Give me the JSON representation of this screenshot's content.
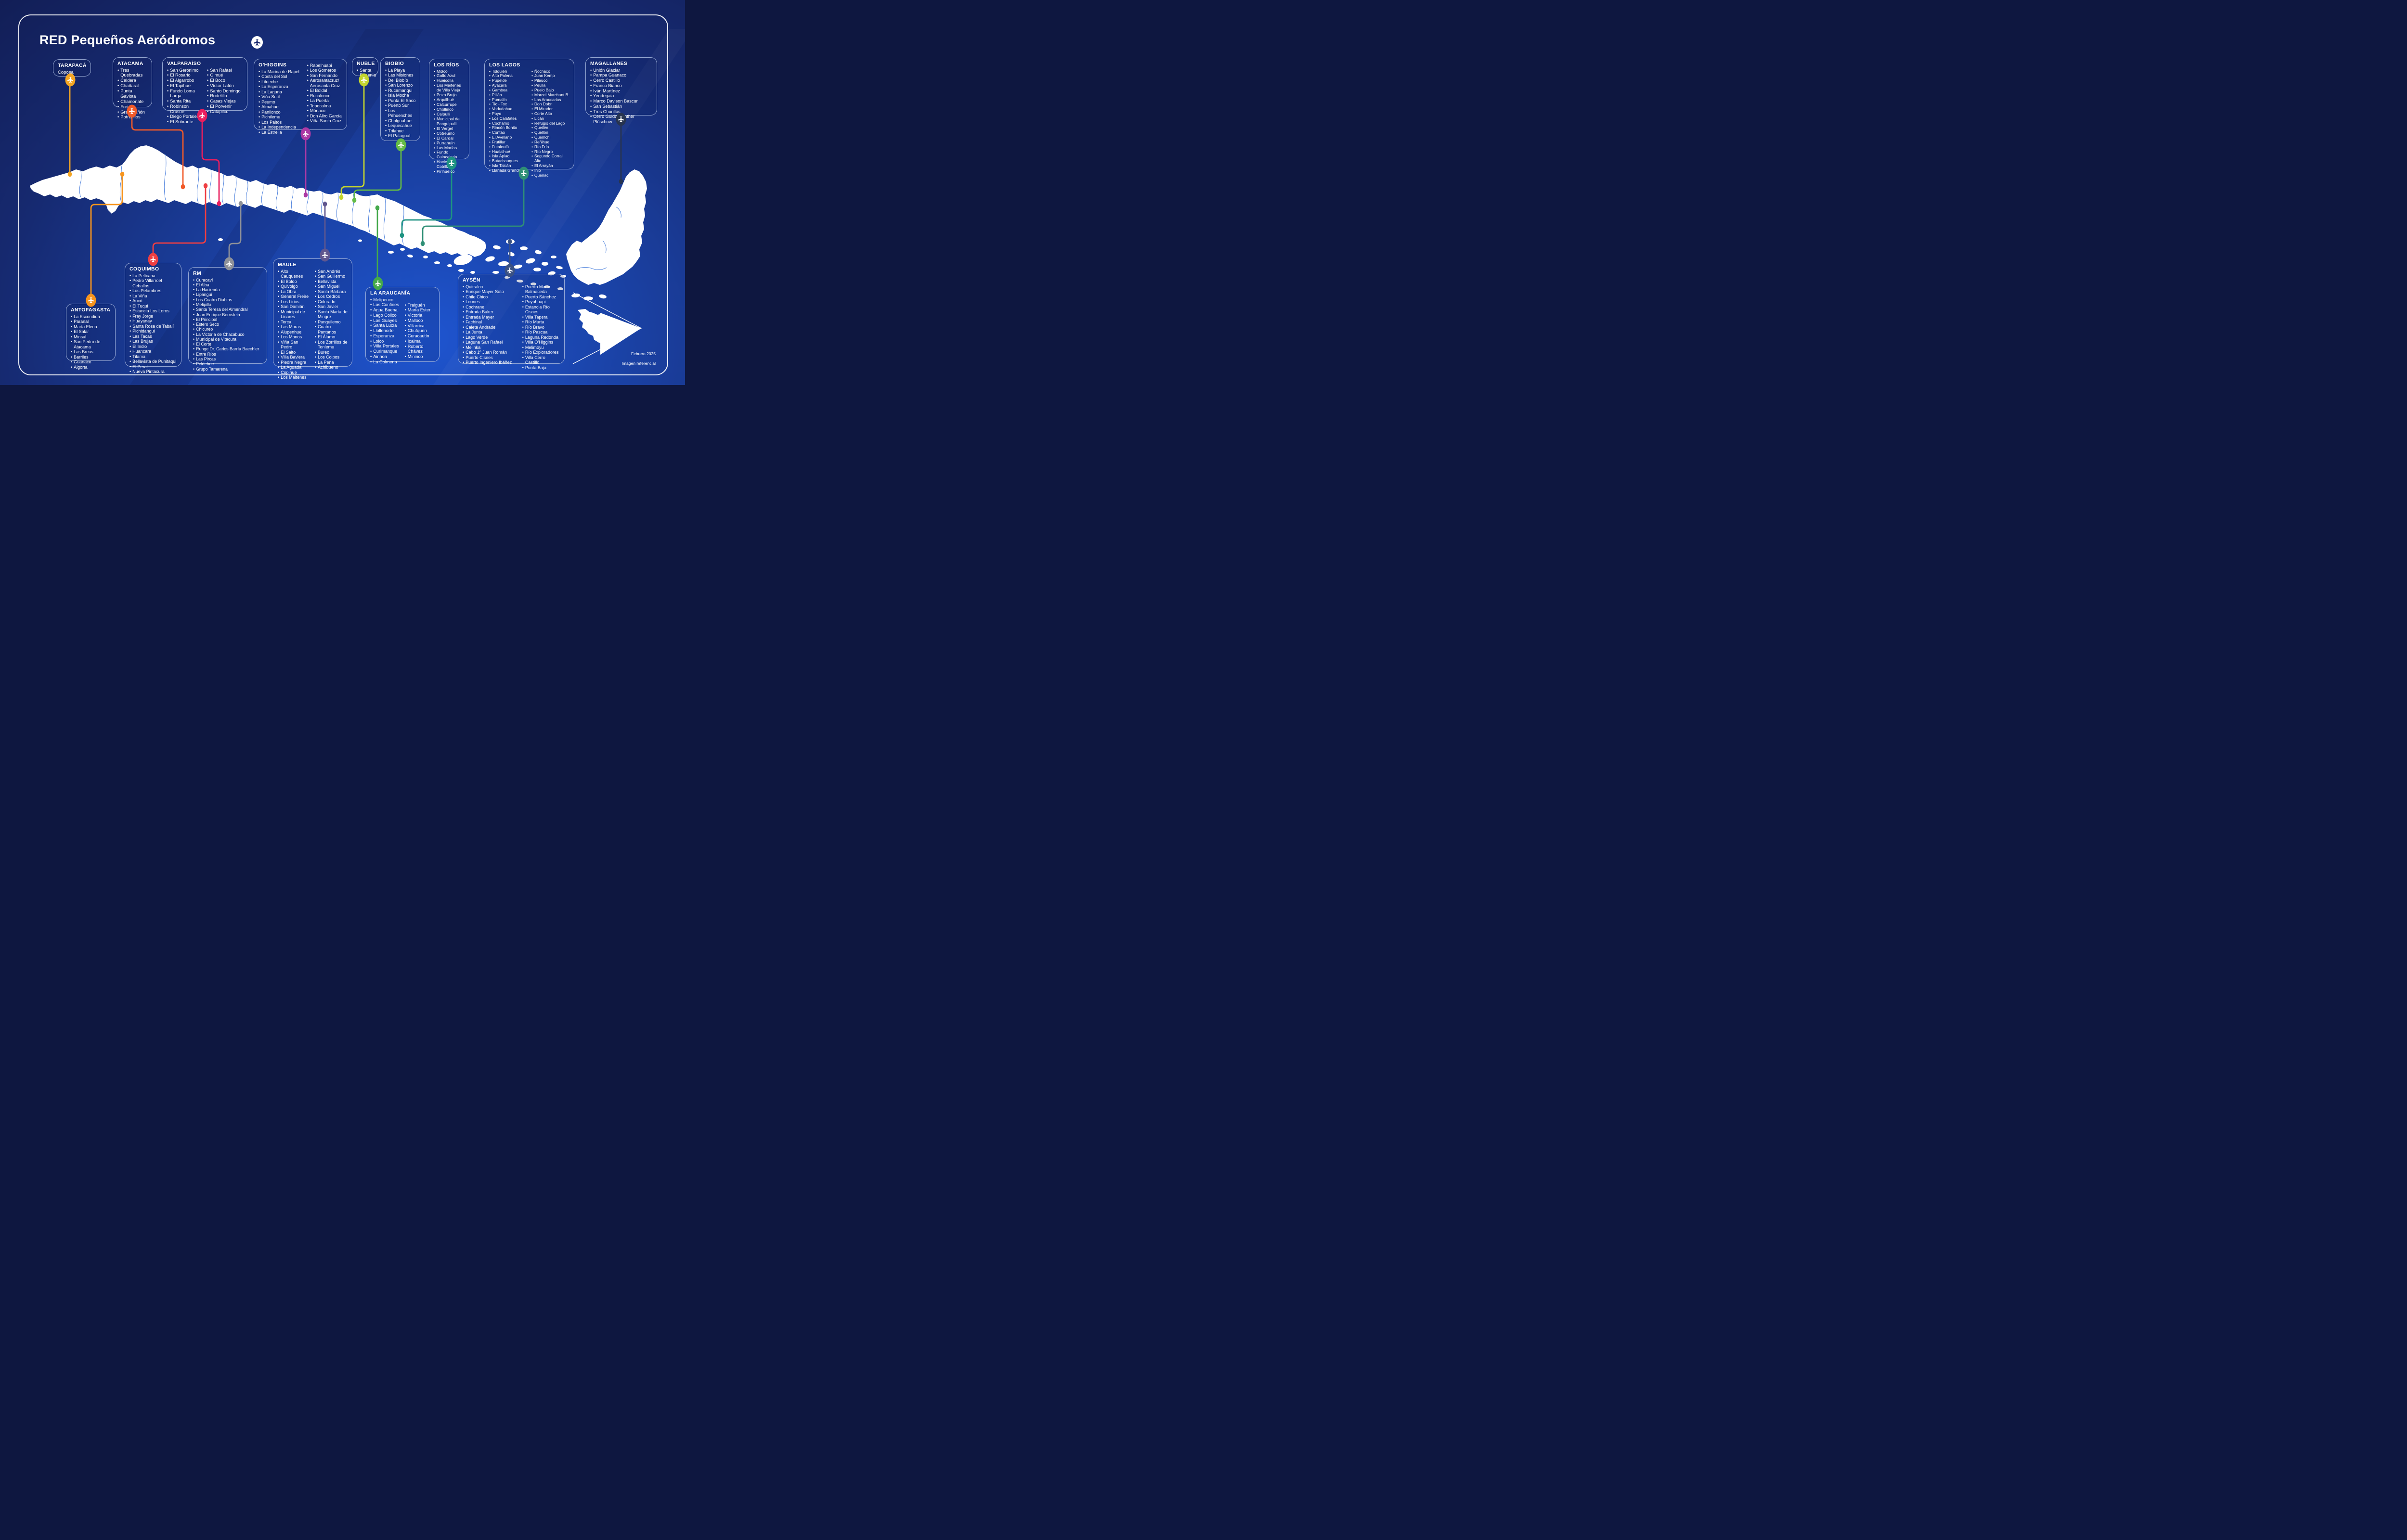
{
  "title": "RED Pequeños Aeródromos",
  "footer": {
    "date": "Febrero 2025",
    "note": "Imagen referencial"
  },
  "palette": {
    "background_top": "#121E56",
    "background_bottom": "#1E55D0",
    "landmass": "#FFFFFF",
    "region_borders": "#2E6BD6",
    "frame": "#FFFFFF",
    "box_border": "#9DB1DA"
  },
  "regions": [
    {
      "id": "tarapaca",
      "name": "TARAPACÁ",
      "color": "#F5A623",
      "columns": [
        [
          "Coposa"
        ]
      ]
    },
    {
      "id": "atacama",
      "name": "ATACAMA",
      "color": "#F15A29",
      "columns": [
        [
          "Tres Quebradas",
          "Caldera",
          "Chañaral",
          "Punta Gaviota",
          "Chamonate",
          "Freirina",
          "Gran Cañón",
          "Potrerillos"
        ]
      ]
    },
    {
      "id": "valparaiso",
      "name": "VALPARAÍSO",
      "color": "#E91E5E",
      "columns": [
        [
          "San Gerónimo",
          "El Rosario",
          "El Algarrobo",
          "El Tapihue",
          "Fundo Loma Larga",
          "Santa Rita",
          "Robinson Crusoe",
          "Diego Portales",
          "El Sobrante"
        ],
        [
          "San Rafael",
          "Olmué",
          "El Boco",
          "Víctor Lafón",
          "Santo Domingo",
          "Rodelillo",
          "Casas Viejas",
          "El Porvenir",
          "Catapilco"
        ]
      ]
    },
    {
      "id": "ohiggins",
      "name": "O’HIGGINS",
      "color": "#AC39A5",
      "columns": [
        [
          "La Marina de Rapel",
          "Costa del Sol",
          "Litueche",
          "La Esperanza",
          "La Laguna",
          "Viña Sutil",
          "Peumo",
          "Almahue",
          "Panilonco",
          "Pichilemu",
          "Los Paltos",
          "La Independencia",
          "La Estrella"
        ],
        [
          "Rapelhuapi",
          "Los Gomeros",
          "San Fernando",
          "Aerosantacruz/ Aerosanta Cruz",
          "El Boldal",
          "Rucalonco",
          "La Puerta",
          "Topocalma",
          "Mónaco",
          "Don Aliro García",
          "Viña Santa Cruz"
        ]
      ]
    },
    {
      "id": "nuble",
      "name": "ÑUBLE",
      "color": "#C3D52E",
      "columns": [
        [
          "Santa Eugenia"
        ]
      ]
    },
    {
      "id": "biobio",
      "name": "BIOBÍO",
      "color": "#63BB46",
      "columns": [
        [
          "La Playa",
          "Las Misiones",
          "Del Biobío",
          "San Lorenzo",
          "Rucamanqui",
          "Isla Mocha",
          "Punta El Saco",
          "Puerto Sur",
          "Los Pehuenches",
          "Cholguahue",
          "Lequecahue",
          "Trilahue",
          "El Patagual"
        ]
      ]
    },
    {
      "id": "losrios",
      "name": "LOS RÍOS",
      "color": "#1E9382",
      "columns": [
        [
          "Molco",
          "Golfo Azul",
          "Hueicolla",
          "Los Maitenes de Villa Vieja",
          "Pozo Brujo",
          "Arquilhué",
          "Calcurrupe",
          "Chollinco",
          "Calpulli",
          "Municipal de Panguipulli",
          "El Vergel",
          "Cotreumo",
          "El Cardal",
          "Purrahuín",
          "Las Marías",
          "Fundo Cuincahuin",
          "Hacienda Cotrilla",
          "Pirihueico"
        ]
      ]
    },
    {
      "id": "loslagos",
      "name": "LOS LAGOS",
      "color": "#2F8F76",
      "columns": [
        [
          "Tolquién",
          "Alto Palena",
          "Pupelde",
          "Ayacara",
          "Gamboa",
          "Pillán",
          "Pumalín",
          "Tic - Toc",
          "Vodudahue",
          "Poyo",
          "Los Calafates",
          "Cochamó",
          "Rincón Bonito",
          "Contao",
          "El Avellano",
          "Frutillar",
          "Futaleufú",
          "Hualaihué",
          "Isla Apiao",
          "Butachauques",
          "Isla Talcán",
          "Llanada Grande"
        ],
        [
          "Ñochaco",
          "Juan Kemp",
          "Pilauco",
          "Peulla",
          "Puelo Bajo",
          "Marcel Marchant B.",
          "Las Araucarias",
          "Don Dobri",
          "El Mirador",
          "Corte Alto",
          "Licán",
          "Refugio del Lago",
          "Queilén",
          "Quellón",
          "Quemchi",
          "Reñihue",
          "Río Frío",
          "Río Negro",
          "Segundo Corral Alto",
          "El Arrayán",
          "Inio",
          "Quenac"
        ]
      ]
    },
    {
      "id": "magallanes",
      "name": "MAGALLANES",
      "color": "#273450",
      "columns": [
        [
          "Unión Glaciar",
          "Pampa Guanaco",
          "Cerro Castillo",
          "Franco Bianco",
          "Iván Martínez",
          "Yendegaia",
          "Marco Davison Bascur",
          "San Sebastián",
          "Tres Chorillos",
          "Cerro Guido/Gunther Plüschow"
        ]
      ]
    },
    {
      "id": "antofagasta",
      "name": "ANTOFAGASTA",
      "color": "#F7941D",
      "columns": [
        [
          "La Escondida",
          "Paranal",
          "María Elena",
          "El Salar",
          "Minsal",
          "San Pedro de Atacama",
          "Las Breas",
          "Barriles",
          "Guanaco",
          "Algorta"
        ]
      ]
    },
    {
      "id": "coquimbo",
      "name": "COQUIMBO",
      "color": "#EF3E42",
      "columns": [
        [
          "La Pelícana",
          "Pedro Villarroel Ceballos",
          "Los Pelambres",
          "La Viña",
          "Aucó",
          "El Tuqui",
          "Estancia Los Loros",
          "Fray Jorge",
          "Huayanay",
          "Santa Rosa de Tabalí",
          "Pichidangui",
          "Las Tacas",
          "Las Brujas",
          "El Indio",
          "Huancara",
          "Tilama",
          "Bellavista de Punitaqui",
          "El Peral",
          "Nueva Pintacura"
        ]
      ]
    },
    {
      "id": "rm",
      "name": "RM",
      "color": "#8E9199",
      "columns": [
        [
          "Curacaví",
          "El Alba",
          "La Hacienda",
          "Lipangui",
          "Los Cuatro Diablos",
          "Melipilla",
          "Santa Teresa del Almendral",
          "Juan Enrique Bernstein",
          "El Principal",
          "Estero Seco",
          "Chicureo",
          "La Victoria de Chacabuco",
          "Municipal de Vitacura",
          "El Corte",
          "Runge Dr. Carlos Barría Baechler",
          "Entre Ríos",
          "Las Pircas",
          "Peldehue",
          "Grupo Tamarena"
        ]
      ]
    },
    {
      "id": "maule",
      "name": "MAULE",
      "color": "#60578F",
      "columns": [
        [
          "Alto Cauquenes",
          "El Boldo",
          "Quivolgo",
          "La Obra",
          "General Freire",
          "Los Lirios",
          "San Damián",
          "Municipal de Linares",
          "Torca",
          "Las Moras",
          "Alupenhue",
          "Los Monos",
          "Viña San Pedro",
          "El Salto",
          "Villa Baviera",
          "Piedra Negra",
          "La Aguada",
          "Copihue",
          "Los Maitenes"
        ],
        [
          "San Andrés",
          "San Guillermo",
          "Bellavista",
          "San Miguel",
          "Santa Bárbara",
          "Los Cedros",
          "Colorado",
          "San Javier",
          "Santa María de Mingre",
          "Panguilemo",
          "Cuatro Pantanos",
          "El Álamo",
          "Los Zorrillos de Tonlemu",
          "Bureo",
          "Los Coipos",
          "La Peña",
          "Achibueno"
        ]
      ]
    },
    {
      "id": "araucania",
      "name": "LA ARAUCANÍA",
      "color": "#44A94B",
      "columns": [
        [
          "Melipeuco",
          "Los Confines",
          "Agua Buena",
          "Lago Colico",
          "Los Guayes",
          "Santa Lucía",
          "Llollenorte",
          "Esperanza",
          "Lolco",
          "Villa Portales",
          "Curimanque",
          "Ainhoa",
          "La Colmena"
        ],
        [
          "Traiguén",
          "María Ester",
          "Victoria",
          "Malloco",
          "Villarrica",
          "Chufquen",
          "Curacautín",
          "Icalma",
          "Roberto Chávez",
          "Mininco"
        ]
      ]
    },
    {
      "id": "aysen",
      "name": "AYSÉN",
      "color": "#3A5183",
      "columns": [
        [
          "Quitralco",
          "Enrique Mayer Soto",
          "Chile Chico",
          "Leones",
          "Cochrane",
          "Entrada Baker",
          "Entrada Mayer",
          "Fachinal",
          "Caleta Andrade",
          "La Junta",
          "Lago Verde",
          "Laguna San Rafael",
          "Melinka",
          "Cabo 1º Juan Román",
          "Puerto Cisnes",
          "Puerto Ingeniero Ibáñez"
        ],
        [
          "Puerto Marín Balmaceda",
          "Puerto Sánchez",
          "Puyuhuapi",
          "Estancia Río Cisnes",
          "Villa Tapera",
          "Río Murta",
          "Río Bravo",
          "Río Pascua",
          "Laguna Redonda",
          "Villa O’Higgins",
          "Melimoyu",
          "Río Exploradores",
          "Villa Cerro Castillo",
          "Punta Baja"
        ]
      ]
    }
  ]
}
